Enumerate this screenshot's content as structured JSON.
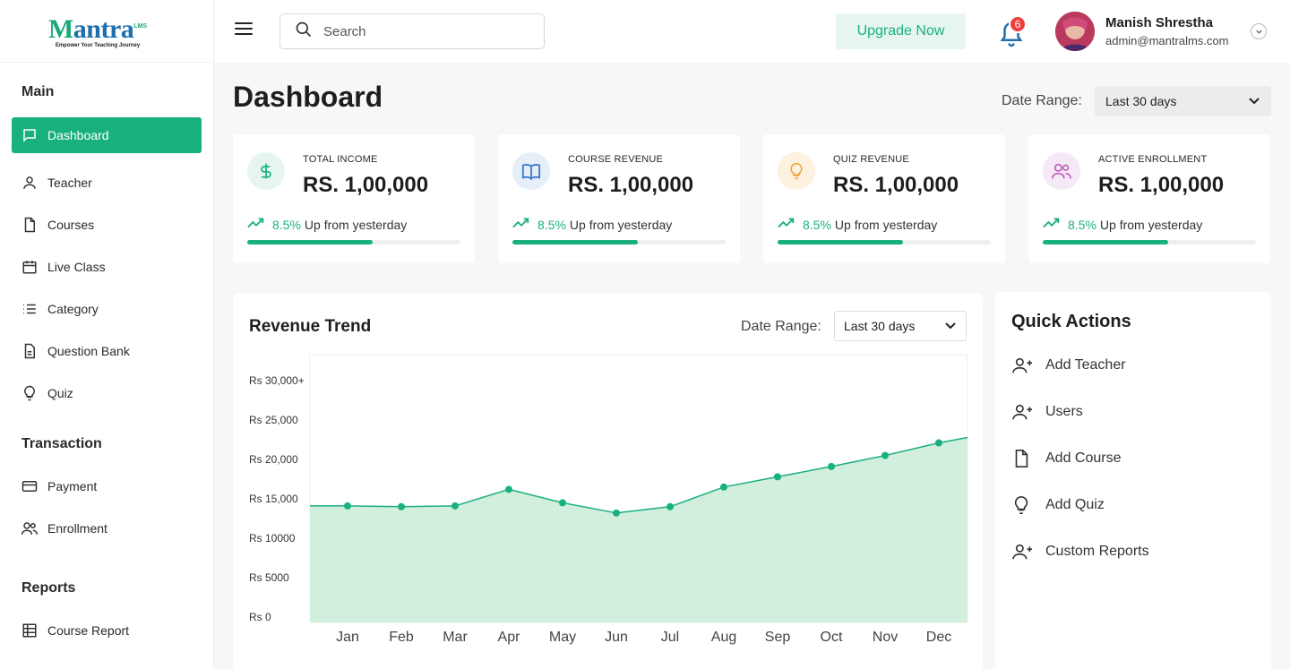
{
  "brand": {
    "name_head": "antra",
    "name_sup": "LMS",
    "tagline": "Empower Your Teaching Journey",
    "primary_color": "#19b07f",
    "secondary_color": "#1f6fae"
  },
  "sidebar": {
    "sections": [
      {
        "title": "Main",
        "items": [
          {
            "label": "Dashboard",
            "icon": "chat-icon",
            "active": true
          },
          {
            "label": "Teacher",
            "icon": "user-icon"
          },
          {
            "label": "Courses",
            "icon": "file-icon"
          },
          {
            "label": "Live Class",
            "icon": "calendar-icon"
          },
          {
            "label": "Category",
            "icon": "list-icon"
          },
          {
            "label": "Question Bank",
            "icon": "document-icon"
          },
          {
            "label": "Quiz",
            "icon": "bulb-icon"
          }
        ]
      },
      {
        "title": "Transaction",
        "items": [
          {
            "label": "Payment",
            "icon": "card-icon"
          },
          {
            "label": "Enrollment",
            "icon": "users-icon"
          }
        ]
      },
      {
        "title": "Reports",
        "items": [
          {
            "label": "Course Report",
            "icon": "table-icon"
          }
        ]
      }
    ]
  },
  "topbar": {
    "search_placeholder": "Search",
    "upgrade_label": "Upgrade Now",
    "notification_count": "6",
    "user_name": "Manish Shrestha",
    "user_email": "admin@mantralms.com"
  },
  "header": {
    "title": "Dashboard",
    "date_range_label": "Date Range:",
    "date_range_value": "Last 30 days"
  },
  "stats": [
    {
      "label": "TOTAL INCOME",
      "value": "RS. 1,00,000",
      "trend_pct": "8.5%",
      "trend_text": "Up from yesterday",
      "progress": 0.59,
      "icon": "dollar-icon",
      "icon_bg": "#e6f6ef",
      "icon_color": "#19b07f"
    },
    {
      "label": "COURSE REVENUE",
      "value": "RS. 1,00,000",
      "trend_pct": "8.5%",
      "trend_text": "Up from yesterday",
      "progress": 0.59,
      "icon": "book-icon",
      "icon_bg": "#e6eef8",
      "icon_color": "#3b7bd1"
    },
    {
      "label": "QUIZ REVENUE",
      "value": "RS. 1,00,000",
      "trend_pct": "8.5%",
      "trend_text": "Up from yesterday",
      "progress": 0.59,
      "icon": "bulb-icon",
      "icon_bg": "#fdf1e0",
      "icon_color": "#f0a53c"
    },
    {
      "label": "ACTIVE ENROLLMENT",
      "value": "RS. 1,00,000",
      "trend_pct": "8.5%",
      "trend_text": "Up from yesterday",
      "progress": 0.59,
      "icon": "users-icon",
      "icon_bg": "#f6e9f6",
      "icon_color": "#c267c8"
    }
  ],
  "revenue": {
    "title": "Revenue Trend",
    "date_range_label": "Date Range:",
    "date_range_value": "Last 30 days"
  },
  "chart_data": {
    "type": "area",
    "title": "Revenue Trend",
    "categories": [
      "Jan",
      "Feb",
      "Mar",
      "Apr",
      "May",
      "Jun",
      "Jul",
      "Aug",
      "Sep",
      "Oct",
      "Nov",
      "Dec"
    ],
    "series": [
      {
        "values": [
          14100,
          14000,
          14100,
          16200,
          14500,
          13200,
          14000,
          16500,
          17800,
          19100,
          20500,
          22100
        ]
      }
    ],
    "y_ticks": [
      {
        "value": 0,
        "label": "Rs 0"
      },
      {
        "value": 5000,
        "label": "Rs 5000"
      },
      {
        "value": 10000,
        "label": "Rs 10000"
      },
      {
        "value": 15000,
        "label": "Rs 15,000"
      },
      {
        "value": 20000,
        "label": "Rs 20,000"
      },
      {
        "value": 25000,
        "label": "Rs 25,000"
      },
      {
        "value": 30000,
        "label": "Rs 30,000+"
      }
    ],
    "ylim": [
      0,
      30000
    ],
    "grid": false,
    "line_color": "#19b07f",
    "fill_color": "#d2eedd"
  },
  "quick_actions": {
    "title": "Quick Actions",
    "items": [
      {
        "label": "Add Teacher",
        "icon": "user-plus-icon"
      },
      {
        "label": "Users",
        "icon": "user-plus-icon"
      },
      {
        "label": "Add Course",
        "icon": "file-icon"
      },
      {
        "label": "Add Quiz",
        "icon": "bulb-icon"
      },
      {
        "label": "Custom Reports",
        "icon": "user-plus-icon"
      }
    ]
  }
}
